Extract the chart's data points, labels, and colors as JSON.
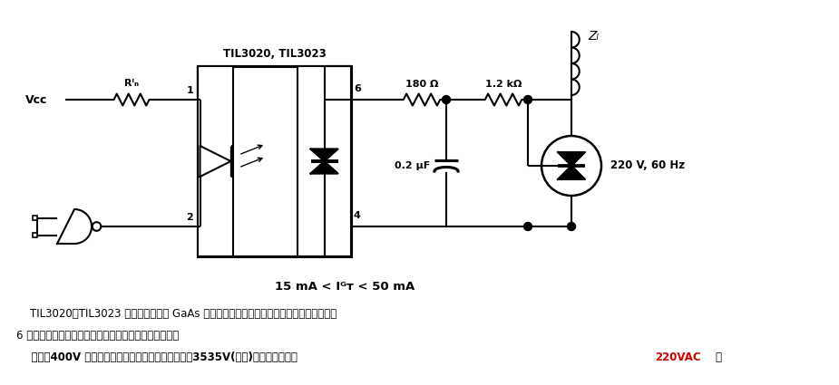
{
  "bg_color": "#ffffff",
  "line_color": "#000000",
  "red_color": "#cc0000",
  "lw": 1.5,
  "fig_width": 9.25,
  "fig_height": 4.25,
  "dpi": 100,
  "chip_label": "TIL3020, TIL3023",
  "res1_label": "180 Ω",
  "res2_label": "1.2 kΩ",
  "zl_label": "Zₗ",
  "cap_label": "0.2 μF",
  "ac_label": "220 V, 60 Hz",
  "rin_label": "Rᴵₙ",
  "vcc_label": "Vᴄᴄ",
  "igt_label": "15 mA < Iᴳᴛ < 50 mA",
  "pin1_label": "1",
  "pin2_label": "2",
  "pin6_label": "6",
  "pin4_label": "4",
  "desc1": "    TIL3020～TIL3023 型光耦合器件由 GaAs 红外发射二极管及硅光电双向可控确开关组成。",
  "desc2": "6 引脚封装，在高湿度工作环境下器件的工作特性较好。",
  "desc3a": "    特点：400V 光双向可控确驱动输出；高隔离电压：3535V(峰値)；输出驱动用于 ",
  "desc3b": "220VAC",
  "desc3c": "。"
}
